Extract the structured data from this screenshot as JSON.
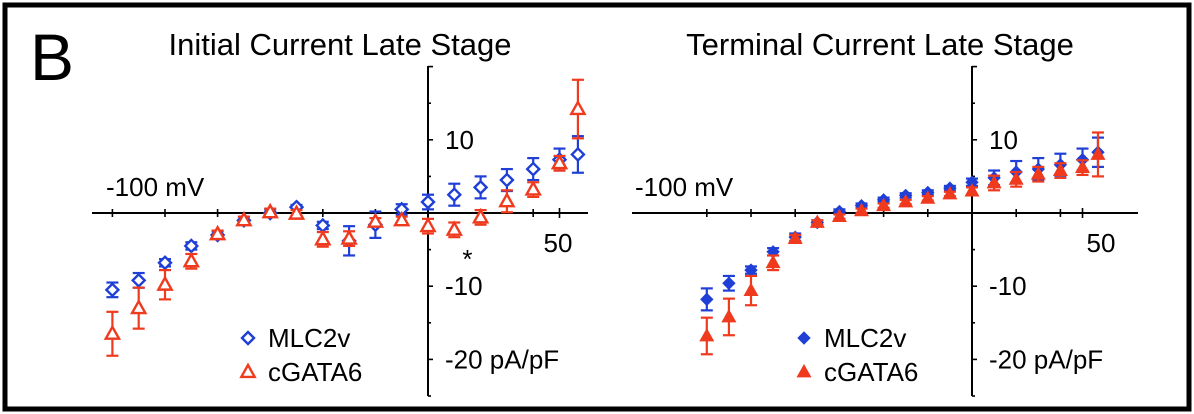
{
  "panel_label": "B",
  "colors": {
    "mlc2v": "#1f3fd6",
    "cgata6": "#ef3a1e",
    "axis": "#000000"
  },
  "chart_data": [
    {
      "type": "scatter",
      "title": "Initial Current Late Stage",
      "x_unit_label": "-100 mV",
      "x_tick_label": "50",
      "y_tick_labels": [
        "10",
        "-10",
        "-20 pA/pF"
      ],
      "annotation": "*",
      "annotation_x": 15,
      "xlim": [
        -130,
        60
      ],
      "ylim": [
        -25,
        20
      ],
      "grid": false,
      "legend_placement": "bottom-center",
      "marker_style": "open",
      "series": [
        {
          "name": "MLC2v",
          "marker": "diamond",
          "x": [
            -120,
            -110,
            -100,
            -90,
            -80,
            -70,
            -60,
            -50,
            -40,
            -30,
            -20,
            -10,
            0,
            10,
            20,
            30,
            40,
            50,
            57
          ],
          "y": [
            -10.5,
            -9.2,
            -6.8,
            -4.5,
            -3.0,
            -1.0,
            0.0,
            0.8,
            -1.7,
            -3.8,
            -1.6,
            0.5,
            1.5,
            2.5,
            3.5,
            4.5,
            6.0,
            7.3,
            8.0
          ],
          "err": [
            1.0,
            1.0,
            0.5,
            0.5,
            0.5,
            0.5,
            0.5,
            0.3,
            0.5,
            2.0,
            1.8,
            0.7,
            1.0,
            1.5,
            1.5,
            1.5,
            1.5,
            1.5,
            2.5
          ]
        },
        {
          "name": "cGATA6",
          "marker": "triangle",
          "x": [
            -120,
            -110,
            -100,
            -90,
            -80,
            -70,
            -60,
            -50,
            -40,
            -30,
            -20,
            -10,
            0,
            10,
            20,
            30,
            40,
            50,
            57
          ],
          "y": [
            -16.5,
            -13.0,
            -9.8,
            -6.6,
            -2.9,
            -1.0,
            0.1,
            -0.1,
            -3.6,
            -3.5,
            -1.2,
            -1.0,
            -1.8,
            -2.3,
            -0.6,
            1.6,
            3.2,
            6.8,
            14.2
          ],
          "err": [
            3.0,
            2.8,
            2.0,
            1.0,
            0.5,
            0.5,
            0.5,
            0.5,
            1.0,
            1.0,
            0.5,
            0.5,
            1.0,
            1.0,
            1.0,
            1.5,
            1.0,
            1.0,
            4.0
          ]
        }
      ]
    },
    {
      "type": "scatter",
      "title": "Terminal Current Late Stage",
      "x_unit_label": "-100 mV",
      "x_tick_label": "50",
      "y_tick_labels": [
        "10",
        "-10",
        "-20 pA/pF"
      ],
      "xlim": [
        -130,
        60
      ],
      "ylim": [
        -25,
        20
      ],
      "grid": false,
      "legend_placement": "bottom-center",
      "marker_style": "filled",
      "series": [
        {
          "name": "MLC2v",
          "marker": "diamond",
          "x": [
            -120,
            -110,
            -100,
            -90,
            -80,
            -70,
            -60,
            -50,
            -40,
            -30,
            -20,
            -10,
            0,
            10,
            20,
            30,
            40,
            50,
            57
          ],
          "y": [
            -11.8,
            -9.6,
            -7.8,
            -5.3,
            -3.3,
            -1.3,
            0.2,
            1.0,
            1.8,
            2.4,
            2.8,
            3.4,
            4.2,
            4.8,
            5.6,
            6.0,
            6.6,
            7.3,
            8.3
          ],
          "err": [
            1.5,
            1.0,
            0.5,
            0.5,
            0.5,
            0.3,
            0.3,
            0.3,
            0.3,
            0.3,
            0.3,
            0.3,
            0.5,
            1.0,
            1.5,
            1.5,
            1.5,
            1.5,
            2.0
          ]
        },
        {
          "name": "cGATA6",
          "marker": "triangle",
          "x": [
            -120,
            -110,
            -100,
            -90,
            -80,
            -70,
            -60,
            -50,
            -40,
            -30,
            -20,
            -10,
            0,
            10,
            20,
            30,
            40,
            50,
            57
          ],
          "y": [
            -16.8,
            -14.2,
            -10.6,
            -6.8,
            -3.5,
            -1.3,
            -0.5,
            0.3,
            1.0,
            1.5,
            2.0,
            2.6,
            3.0,
            4.1,
            4.6,
            5.3,
            5.8,
            6.2,
            8.0
          ],
          "err": [
            2.5,
            2.5,
            2.0,
            1.0,
            0.5,
            0.3,
            0.3,
            0.3,
            0.3,
            0.3,
            0.3,
            0.3,
            0.5,
            1.0,
            1.0,
            1.0,
            1.0,
            1.0,
            3.0
          ]
        }
      ]
    }
  ]
}
